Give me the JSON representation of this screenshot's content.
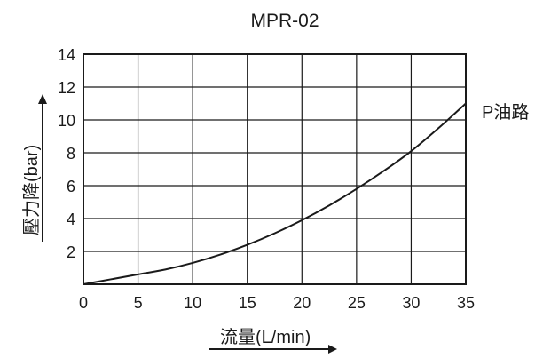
{
  "chart_data": {
    "type": "line",
    "title": "MPR-02",
    "xlabel": "流量(L/min)",
    "ylabel": "壓力降(bar)",
    "xlim": [
      0,
      35
    ],
    "ylim": [
      0,
      14
    ],
    "x_ticks": [
      "0",
      "5",
      "10",
      "15",
      "20",
      "25",
      "30",
      "35"
    ],
    "y_ticks": [
      "2",
      "4",
      "6",
      "8",
      "10",
      "12",
      "14"
    ],
    "grid": true,
    "series": [
      {
        "name": "P油路",
        "color": "#1a1a1a",
        "x": [
          0,
          2.5,
          5,
          7.5,
          10,
          12.5,
          15,
          17.5,
          20,
          22.5,
          25,
          27.5,
          30,
          32.5,
          35
        ],
        "y": [
          0,
          0.3,
          0.6,
          0.9,
          1.3,
          1.8,
          2.4,
          3.1,
          3.9,
          4.8,
          5.8,
          6.9,
          8.1,
          9.5,
          11.0
        ]
      }
    ]
  }
}
